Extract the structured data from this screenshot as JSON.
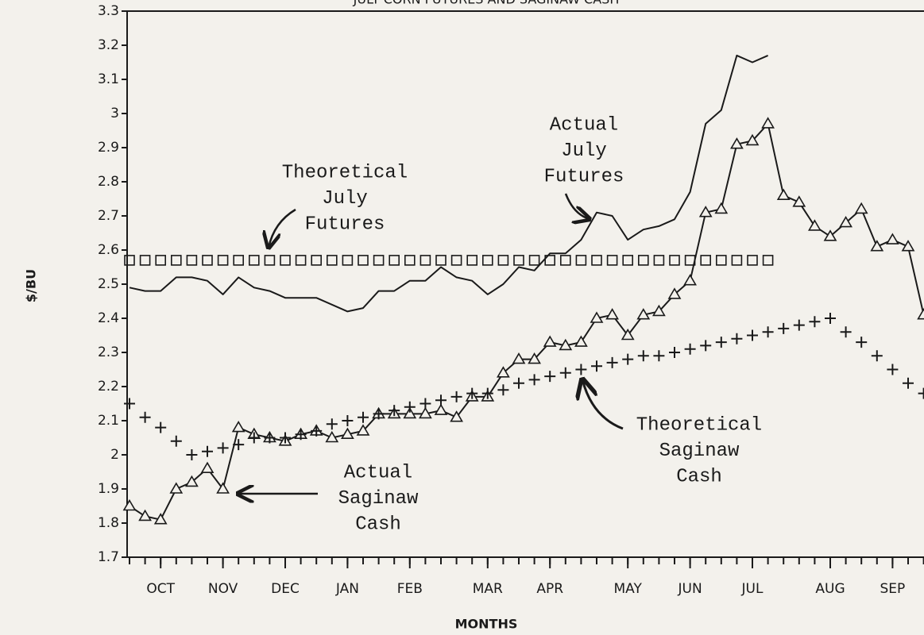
{
  "chart_data": {
    "type": "line",
    "title": "JULY CORN FUTURES AND SAGINAW CASH",
    "y_label": "$/BU",
    "x_label": "MONTHS",
    "x": [
      0,
      1,
      2,
      3,
      4,
      5,
      6,
      7,
      8,
      9,
      10,
      11,
      12,
      13,
      14,
      15,
      16,
      17,
      18,
      19,
      20,
      21,
      22,
      23,
      24,
      25,
      26,
      27,
      28,
      29,
      30,
      31,
      32,
      33,
      34,
      35,
      36,
      37,
      38,
      39,
      40,
      41,
      42,
      43,
      44,
      45,
      46,
      47,
      48,
      49,
      50,
      51
    ],
    "xlim": [
      0,
      51
    ],
    "xticks": [
      {
        "value": 2,
        "label": "OCT"
      },
      {
        "value": 6,
        "label": "NOV"
      },
      {
        "value": 10,
        "label": "DEC"
      },
      {
        "value": 14,
        "label": "JAN"
      },
      {
        "value": 18,
        "label": "FEB"
      },
      {
        "value": 23,
        "label": "MAR"
      },
      {
        "value": 27,
        "label": "APR"
      },
      {
        "value": 32,
        "label": "MAY"
      },
      {
        "value": 36,
        "label": "JUN"
      },
      {
        "value": 40,
        "label": "JUL"
      },
      {
        "value": 45,
        "label": "AUG"
      },
      {
        "value": 49,
        "label": "SEP"
      }
    ],
    "ylim": [
      1.7,
      3.3
    ],
    "yticks": [
      1.7,
      1.8,
      1.9,
      2,
      2.1,
      2.2,
      2.3,
      2.4,
      2.5,
      2.6,
      2.7,
      2.8,
      2.9,
      3,
      3.1,
      3.2,
      3.3
    ],
    "series": [
      {
        "name": "Actual July Futures",
        "color": "#1a1a1a",
        "line": true,
        "marker": null,
        "values": [
          2.49,
          2.48,
          2.48,
          2.52,
          2.52,
          2.51,
          2.47,
          2.52,
          2.49,
          2.48,
          2.46,
          2.46,
          2.46,
          2.44,
          2.42,
          2.43,
          2.48,
          2.48,
          2.51,
          2.51,
          2.55,
          2.52,
          2.51,
          2.47,
          2.5,
          2.55,
          2.54,
          2.59,
          2.59,
          2.63,
          2.71,
          2.7,
          2.63,
          2.66,
          2.67,
          2.69,
          2.77,
          2.97,
          3.01,
          3.17,
          3.15,
          3.17,
          null,
          null,
          null,
          null,
          null,
          null,
          null,
          null,
          null,
          null
        ]
      },
      {
        "name": "Theoretical July Futures",
        "color": "#1a1a1a",
        "line": false,
        "marker": "square",
        "values": [
          2.57,
          2.57,
          2.57,
          2.57,
          2.57,
          2.57,
          2.57,
          2.57,
          2.57,
          2.57,
          2.57,
          2.57,
          2.57,
          2.57,
          2.57,
          2.57,
          2.57,
          2.57,
          2.57,
          2.57,
          2.57,
          2.57,
          2.57,
          2.57,
          2.57,
          2.57,
          2.57,
          2.57,
          2.57,
          2.57,
          2.57,
          2.57,
          2.57,
          2.57,
          2.57,
          2.57,
          2.57,
          2.57,
          2.57,
          2.57,
          2.57,
          2.57,
          null,
          null,
          null,
          null,
          null,
          null,
          null,
          null,
          null,
          null
        ]
      },
      {
        "name": "Actual Saginaw Cash",
        "color": "#1a1a1a",
        "line": true,
        "marker": "triangle",
        "values": [
          1.85,
          1.82,
          1.81,
          1.9,
          1.92,
          1.96,
          1.9,
          2.08,
          2.06,
          2.05,
          2.04,
          2.06,
          2.07,
          2.05,
          2.06,
          2.07,
          2.12,
          2.12,
          2.12,
          2.12,
          2.13,
          2.11,
          2.17,
          2.17,
          2.24,
          2.28,
          2.28,
          2.33,
          2.32,
          2.33,
          2.4,
          2.41,
          2.35,
          2.41,
          2.42,
          2.47,
          2.51,
          2.71,
          2.72,
          2.91,
          2.92,
          2.97,
          2.76,
          2.74,
          2.67,
          2.64,
          2.68,
          2.72,
          2.61,
          2.63,
          2.61,
          2.41
        ]
      },
      {
        "name": "Theoretical Saginaw Cash",
        "color": "#1a1a1a",
        "line": false,
        "marker": "plus",
        "values": [
          2.15,
          2.11,
          2.08,
          2.04,
          2.0,
          2.01,
          2.02,
          2.03,
          2.05,
          2.05,
          2.05,
          2.06,
          2.07,
          2.09,
          2.1,
          2.11,
          2.12,
          2.13,
          2.14,
          2.15,
          2.16,
          2.17,
          2.18,
          2.18,
          2.19,
          2.21,
          2.22,
          2.23,
          2.24,
          2.25,
          2.26,
          2.27,
          2.28,
          2.29,
          2.29,
          2.3,
          2.31,
          2.32,
          2.33,
          2.34,
          2.35,
          2.36,
          2.37,
          2.38,
          2.39,
          2.4,
          2.36,
          2.33,
          2.29,
          2.25,
          2.21,
          2.18
        ]
      }
    ],
    "annotations": [
      [
        "Theoretical",
        "July",
        "Futures"
      ],
      [
        "Actual",
        "July",
        "Futures"
      ],
      [
        "Actual",
        "Saginaw",
        "Cash"
      ],
      [
        "Theoretical",
        "Saginaw",
        "Cash"
      ]
    ]
  }
}
